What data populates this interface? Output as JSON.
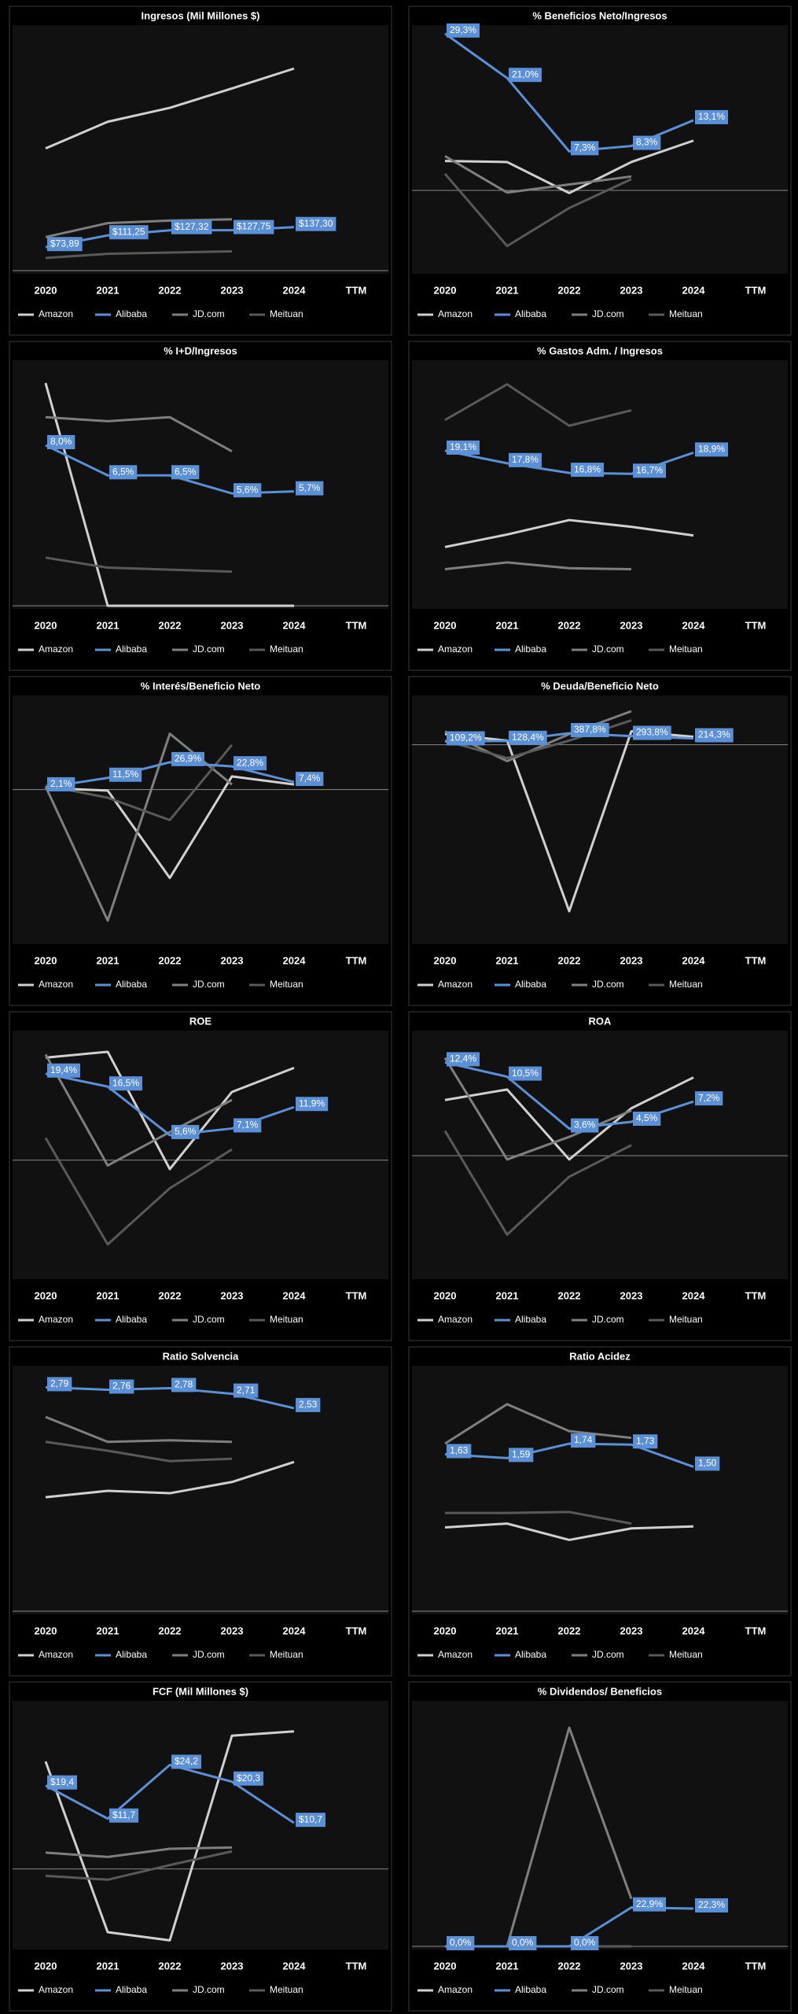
{
  "chart_data": [
    {
      "type": "line",
      "title": "Ingresos (Mil Millones $)",
      "categories": [
        "2020",
        "2021",
        "2022",
        "2023",
        "2024",
        "TTM"
      ],
      "ylim": [
        0,
        760
      ],
      "series": [
        {
          "name": "Amazon",
          "color": "#d0d0d0",
          "values": [
            386,
            470,
            514,
            575,
            638,
            null
          ]
        },
        {
          "name": "Alibaba",
          "color": "#5b8fd6",
          "values": [
            73.89,
            111.25,
            127.32,
            127.75,
            137.3,
            null
          ],
          "value_labels": [
            "$73,89",
            "$111,25",
            "$127,32",
            "$127,75",
            "$137,30",
            null
          ]
        },
        {
          "name": "JD.com",
          "color": "#7f7f7f",
          "values": [
            106,
            150,
            158,
            162,
            null,
            null
          ]
        },
        {
          "name": "Meituan",
          "color": "#595959",
          "values": [
            40,
            53,
            57,
            61,
            null,
            null
          ]
        }
      ]
    },
    {
      "type": "line",
      "title": "% Beneficios Neto/Ingresos",
      "categories": [
        "2020",
        "2021",
        "2022",
        "2023",
        "2024",
        "TTM"
      ],
      "ylim": [
        -15,
        30
      ],
      "series": [
        {
          "name": "Amazon",
          "color": "#d0d0d0",
          "values": [
            5.5,
            5.3,
            -0.5,
            5.3,
            9.3,
            null
          ]
        },
        {
          "name": "Alibaba",
          "color": "#5b8fd6",
          "values": [
            29.3,
            21.0,
            7.3,
            8.3,
            13.1,
            null
          ],
          "value_labels": [
            "29,3%",
            "21,0%",
            "7,3%",
            "8,3%",
            "13,1%",
            null
          ]
        },
        {
          "name": "JD.com",
          "color": "#7f7f7f",
          "values": [
            6.4,
            -0.4,
            1.1,
            2.6,
            null,
            null
          ]
        },
        {
          "name": "Meituan",
          "color": "#595959",
          "values": [
            3.1,
            -10.4,
            -3.3,
            2.1,
            null,
            null
          ]
        }
      ]
    },
    {
      "type": "line",
      "title": "% I+D/Ingresos",
      "categories": [
        "2020",
        "2021",
        "2022",
        "2023",
        "2024",
        "TTM"
      ],
      "ylim": [
        0,
        12
      ],
      "series": [
        {
          "name": "Amazon",
          "color": "#d0d0d0",
          "values": [
            11.1,
            0,
            0,
            0,
            0,
            null
          ]
        },
        {
          "name": "Alibaba",
          "color": "#5b8fd6",
          "values": [
            8.0,
            6.5,
            6.5,
            5.6,
            5.7,
            null
          ],
          "value_labels": [
            "8,0%",
            "6,5%",
            "6,5%",
            "5,6%",
            "5,7%",
            null
          ]
        },
        {
          "name": "JD.com",
          "color": "#7f7f7f",
          "values": [
            9.4,
            9.2,
            9.4,
            7.7,
            null,
            null
          ]
        },
        {
          "name": "Meituan",
          "color": "#595959",
          "values": [
            2.4,
            1.9,
            1.8,
            1.7,
            null,
            null
          ]
        }
      ]
    },
    {
      "type": "line",
      "title": "% Gastos Adm. / Ingresos",
      "categories": [
        "2020",
        "2021",
        "2022",
        "2023",
        "2024",
        "TTM"
      ],
      "ylim": [
        3,
        28
      ],
      "series": [
        {
          "name": "Amazon",
          "color": "#d0d0d0",
          "values": [
            9.1,
            10.4,
            11.9,
            11.2,
            10.3,
            null
          ]
        },
        {
          "name": "Alibaba",
          "color": "#5b8fd6",
          "values": [
            19.1,
            17.8,
            16.8,
            16.7,
            18.9,
            null
          ],
          "value_labels": [
            "19,1%",
            "17,8%",
            "16,8%",
            "16,7%",
            "18,9%",
            null
          ]
        },
        {
          "name": "JD.com",
          "color": "#7f7f7f",
          "values": [
            6.8,
            7.5,
            6.9,
            6.8,
            null,
            null
          ]
        },
        {
          "name": "Meituan",
          "color": "#595959",
          "values": [
            22.3,
            26.0,
            21.7,
            23.3,
            null,
            null
          ]
        }
      ]
    },
    {
      "type": "line",
      "title": "% Interés/Beneficio Neto",
      "categories": [
        "2020",
        "2021",
        "2022",
        "2023",
        "2024",
        "TTM"
      ],
      "ylim": [
        -149,
        88
      ],
      "series": [
        {
          "name": "Amazon",
          "color": "#d0d0d0",
          "values": [
            1.5,
            -1,
            -87,
            13,
            5,
            null
          ]
        },
        {
          "name": "Alibaba",
          "color": "#5b8fd6",
          "values": [
            2.1,
            11.5,
            26.9,
            22.8,
            7.4,
            null
          ],
          "value_labels": [
            "2,1%",
            "11,5%",
            "26,9%",
            "22,8%",
            "7,4%",
            null
          ]
        },
        {
          "name": "JD.com",
          "color": "#7f7f7f",
          "values": [
            3,
            -129,
            55,
            5,
            null,
            null
          ]
        },
        {
          "name": "Meituan",
          "color": "#595959",
          "values": [
            4,
            -8,
            -30,
            44,
            null,
            null
          ]
        }
      ]
    },
    {
      "type": "line",
      "title": "% Deuda/Beneficio Neto",
      "categories": [
        "2020",
        "2021",
        "2022",
        "2023",
        "2024",
        "TTM"
      ],
      "ylim": [
        -6600,
        1500
      ],
      "series": [
        {
          "name": "Amazon",
          "color": "#d0d0d0",
          "values": [
            360,
            140,
            -5600,
            450,
            270,
            null
          ]
        },
        {
          "name": "Alibaba",
          "color": "#5b8fd6",
          "values": [
            109.2,
            128.4,
            387.8,
            293.8,
            214.3,
            null
          ],
          "value_labels": [
            "109,2%",
            "128,4%",
            "387,8%",
            "293,8%",
            "214,3%",
            null
          ]
        },
        {
          "name": "JD.com",
          "color": "#7f7f7f",
          "values": [
            450,
            -550,
            360,
            1130,
            null,
            null
          ]
        },
        {
          "name": "Meituan",
          "color": "#595959",
          "values": [
            140,
            -450,
            140,
            820,
            null,
            null
          ]
        }
      ]
    },
    {
      "type": "line",
      "title": "ROE",
      "categories": [
        "2020",
        "2021",
        "2022",
        "2023",
        "2024",
        "TTM"
      ],
      "ylim": [
        -26,
        28
      ],
      "series": [
        {
          "name": "Amazon",
          "color": "#d0d0d0",
          "values": [
            23,
            24.3,
            -2,
            15.3,
            20.7,
            null
          ]
        },
        {
          "name": "Alibaba",
          "color": "#5b8fd6",
          "values": [
            19.4,
            16.5,
            5.6,
            7.1,
            11.9,
            null
          ],
          "value_labels": [
            "19,4%",
            "16,5%",
            "5,6%",
            "7,1%",
            "11,9%",
            null
          ]
        },
        {
          "name": "JD.com",
          "color": "#7f7f7f",
          "values": [
            23.7,
            -1.2,
            6.3,
            13.5,
            null,
            null
          ]
        },
        {
          "name": "Meituan",
          "color": "#595959",
          "values": [
            5,
            -18.9,
            -6.3,
            2.4,
            null,
            null
          ]
        }
      ]
    },
    {
      "type": "line",
      "title": "ROA",
      "categories": [
        "2020",
        "2021",
        "2022",
        "2023",
        "2024",
        "TTM"
      ],
      "ylim": [
        -16,
        16
      ],
      "series": [
        {
          "name": "Amazon",
          "color": "#d0d0d0",
          "values": [
            7.4,
            8.8,
            -0.5,
            6.3,
            10.4,
            null
          ]
        },
        {
          "name": "Alibaba",
          "color": "#5b8fd6",
          "values": [
            12.4,
            10.5,
            3.6,
            4.5,
            7.2,
            null
          ],
          "value_labels": [
            "12,4%",
            "10,5%",
            "3,6%",
            "4,5%",
            "7,2%",
            null
          ]
        },
        {
          "name": "JD.com",
          "color": "#7f7f7f",
          "values": [
            13,
            -0.5,
            2.5,
            6,
            null,
            null
          ]
        },
        {
          "name": "Meituan",
          "color": "#595959",
          "values": [
            3.3,
            -10.5,
            -2.8,
            1.4,
            null,
            null
          ]
        }
      ]
    },
    {
      "type": "line",
      "title": "Ratio Solvencia",
      "categories": [
        "2020",
        "2021",
        "2022",
        "2023",
        "2024",
        "TTM"
      ],
      "ylim": [
        0,
        3
      ],
      "series": [
        {
          "name": "Amazon",
          "color": "#d0d0d0",
          "values": [
            1.42,
            1.5,
            1.47,
            1.61,
            1.86,
            null
          ]
        },
        {
          "name": "Alibaba",
          "color": "#5b8fd6",
          "values": [
            2.79,
            2.76,
            2.78,
            2.71,
            2.53,
            null
          ],
          "value_labels": [
            "2,79",
            "2,76",
            "2,78",
            "2,71",
            "2,53",
            null
          ]
        },
        {
          "name": "JD.com",
          "color": "#7f7f7f",
          "values": [
            2.42,
            2.11,
            2.13,
            2.11,
            null,
            null
          ]
        },
        {
          "name": "Meituan",
          "color": "#595959",
          "values": [
            2.11,
            2.0,
            1.87,
            1.9,
            null,
            null
          ]
        }
      ]
    },
    {
      "type": "line",
      "title": "Ratio Acidez",
      "categories": [
        "2020",
        "2021",
        "2022",
        "2023",
        "2024",
        "TTM"
      ],
      "ylim": [
        0,
        2.5
      ],
      "series": [
        {
          "name": "Amazon",
          "color": "#d0d0d0",
          "values": [
            0.87,
            0.91,
            0.74,
            0.86,
            0.88,
            null
          ]
        },
        {
          "name": "Alibaba",
          "color": "#5b8fd6",
          "values": [
            1.63,
            1.59,
            1.74,
            1.73,
            1.5,
            null
          ],
          "value_labels": [
            "1,63",
            "1,59",
            "1,74",
            "1,73",
            "1,50",
            null
          ]
        },
        {
          "name": "JD.com",
          "color": "#7f7f7f",
          "values": [
            1.74,
            2.15,
            1.87,
            1.8,
            null,
            null
          ]
        },
        {
          "name": "Meituan",
          "color": "#595959",
          "values": [
            1.02,
            1.02,
            1.03,
            0.91,
            null,
            null
          ]
        }
      ]
    },
    {
      "type": "line",
      "title": "FCF (Mil Millones $)",
      "categories": [
        "2020",
        "2021",
        "2022",
        "2023",
        "2024",
        "TTM"
      ],
      "ylim": [
        -18,
        38
      ],
      "series": [
        {
          "name": "Amazon",
          "color": "#d0d0d0",
          "values": [
            25,
            -14.7,
            -16.6,
            31,
            32,
            null
          ]
        },
        {
          "name": "Alibaba",
          "color": "#5b8fd6",
          "values": [
            19.4,
            11.7,
            24.2,
            20.3,
            10.7,
            null
          ],
          "value_labels": [
            "$19,4",
            "$11,7",
            "$24,2",
            "$20,3",
            "$10,7",
            null
          ]
        },
        {
          "name": "JD.com",
          "color": "#7f7f7f",
          "values": [
            3.8,
            2.8,
            4.7,
            5,
            null,
            null
          ]
        },
        {
          "name": "Meituan",
          "color": "#595959",
          "values": [
            -1.6,
            -2.5,
            0.9,
            4.1,
            null,
            null
          ]
        }
      ]
    },
    {
      "type": "line",
      "title": "% Dividendos/ Beneficios",
      "categories": [
        "2020",
        "2021",
        "2022",
        "2023",
        "2024",
        "TTM"
      ],
      "ylim": [
        0,
        142
      ],
      "series": [
        {
          "name": "Amazon",
          "color": "#d0d0d0",
          "values": [
            0,
            0,
            0,
            0,
            null,
            null
          ]
        },
        {
          "name": "Alibaba",
          "color": "#5b8fd6",
          "values": [
            0,
            0,
            0,
            22.9,
            22.3,
            null
          ],
          "value_labels": [
            "0,0%",
            "0,0%",
            "0,0%",
            "22,9%",
            "22,3%",
            null
          ]
        },
        {
          "name": "JD.com",
          "color": "#7f7f7f",
          "values": [
            0,
            0,
            129,
            28,
            null,
            null
          ]
        },
        {
          "name": "Meituan",
          "color": "#595959",
          "values": [
            0,
            0,
            0,
            0,
            null,
            null
          ]
        }
      ]
    }
  ]
}
